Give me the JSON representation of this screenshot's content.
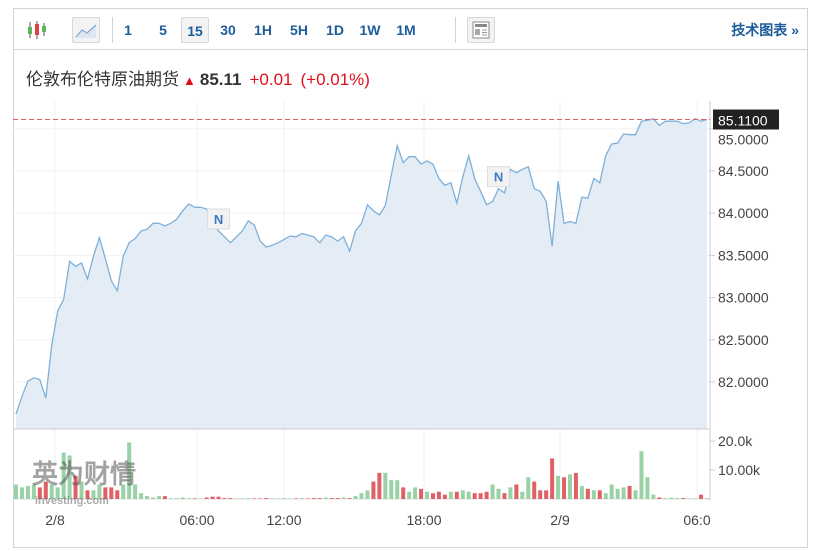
{
  "toolbar": {
    "icons": {
      "candles": "candlestick-icon",
      "line": "line-chart-icon",
      "news": "news-icon"
    },
    "intervals": [
      "1",
      "5",
      "15",
      "30",
      "1H",
      "5H",
      "1D",
      "1W",
      "1M"
    ],
    "active_interval": "15",
    "tech_chart_label": "技术图表 »"
  },
  "header": {
    "name": "伦敦布伦特原油期货",
    "price": "85.11",
    "change": "+0.01",
    "change_pct": "(+0.01%)",
    "direction": "up"
  },
  "watermark": {
    "cn": "英为财情",
    "en": "investing.com"
  },
  "colors": {
    "line": "#7fb0d8",
    "area": "#e4edf6",
    "up": "#99d2a7",
    "down": "#e06065",
    "current_line": "#e06065",
    "label_bg": "#222222"
  },
  "chart_data": {
    "type": "area",
    "x_ticks": [
      "2/8",
      "06:00",
      "12:00",
      "18:00",
      "2/9",
      "06:0"
    ],
    "y_ticks": [
      "82.0000",
      "82.5000",
      "83.0000",
      "83.5000",
      "84.0000",
      "84.5000",
      "85.0000"
    ],
    "ylim": [
      81.6,
      85.3
    ],
    "current_price_label": "85.1100",
    "current_price": 85.11,
    "news_markers": [
      {
        "label": "N",
        "index": 34
      },
      {
        "label": "N",
        "index": 81
      }
    ],
    "prices": [
      81.62,
      81.83,
      82.01,
      82.05,
      82.03,
      81.81,
      82.43,
      82.84,
      82.98,
      83.43,
      83.37,
      83.41,
      83.22,
      83.49,
      83.71,
      83.46,
      83.2,
      83.08,
      83.49,
      83.65,
      83.7,
      83.79,
      83.81,
      83.88,
      83.88,
      83.85,
      83.88,
      83.93,
      84.03,
      84.11,
      84.07,
      84.07,
      84.05,
      83.88,
      83.79,
      83.72,
      83.65,
      83.72,
      83.79,
      83.91,
      83.86,
      83.67,
      83.6,
      83.62,
      83.65,
      83.69,
      83.73,
      83.72,
      83.76,
      83.74,
      83.72,
      83.65,
      83.74,
      83.72,
      83.67,
      83.72,
      83.55,
      83.79,
      83.88,
      84.1,
      84.03,
      83.98,
      84.09,
      84.45,
      84.8,
      84.6,
      84.67,
      84.67,
      84.58,
      84.62,
      84.58,
      84.41,
      84.33,
      84.36,
      84.12,
      84.43,
      84.68,
      84.41,
      84.26,
      84.1,
      84.14,
      84.29,
      84.24,
      84.52,
      84.48,
      84.52,
      84.55,
      84.29,
      84.26,
      84.14,
      83.61,
      84.38,
      83.88,
      83.9,
      83.88,
      84.19,
      84.18,
      84.41,
      84.36,
      84.68,
      84.82,
      84.83,
      84.94,
      84.93,
      84.93,
      85.09,
      85.1,
      85.12,
      85.04,
      85.09,
      85.09,
      85.09,
      85.06,
      85.07,
      85.12,
      85.09,
      85.11
    ],
    "volume_ticks": [
      "20.0k",
      "10.00k"
    ],
    "volume_ylim": [
      0,
      24000
    ],
    "volumes": [
      5000,
      4000,
      4500,
      5000,
      4000,
      6000,
      5000,
      4000,
      16000,
      15000,
      8000,
      6000,
      3000,
      3000,
      5000,
      4000,
      4000,
      3000,
      5000,
      19500,
      5000,
      2000,
      1000,
      500,
      1000,
      1000,
      300,
      300,
      500,
      300,
      200,
      200,
      500,
      800,
      800,
      300,
      300,
      200,
      200,
      300,
      200,
      200,
      300,
      200,
      200,
      300,
      200,
      200,
      300,
      200,
      300,
      300,
      500,
      300,
      300,
      500,
      300,
      1000,
      2000,
      3000,
      6000,
      9000,
      9000,
      6500,
      6500,
      4000,
      2500,
      4000,
      3500,
      2500,
      2000,
      2500,
      1500,
      2500,
      2500,
      3000,
      2500,
      2000,
      2000,
      2500,
      5000,
      3500,
      2000,
      4000,
      5000,
      2500,
      7500,
      6000,
      3000,
      3000,
      14000,
      8000,
      7500,
      8500,
      9000,
      4500,
      3500,
      3000,
      3000,
      2000,
      5000,
      3500,
      4000,
      4500,
      3000,
      16500,
      7500,
      1500,
      500,
      300,
      500,
      300,
      300,
      200,
      200,
      1500,
      300
    ]
  }
}
